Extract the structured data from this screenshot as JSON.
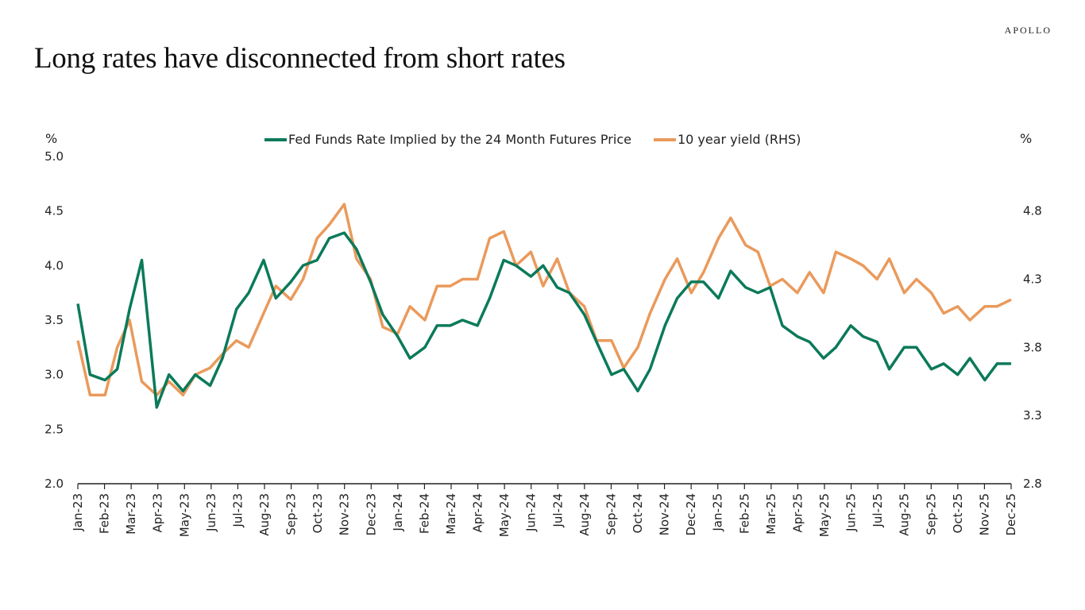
{
  "title": "Long rates have disconnected from short rates",
  "logo": "APOLLO",
  "colors": {
    "fed_funds": "#0b7a5a",
    "ten_year": "#ea9a5c",
    "axis": "#222222"
  },
  "chart_data": {
    "type": "line",
    "title": "Long rates have disconnected from short rates",
    "left_axis": {
      "unit": "%",
      "range": [
        2.0,
        5.0
      ],
      "ticks": [
        "2.0",
        "2.5",
        "3.0",
        "3.5",
        "4.0",
        "4.5",
        "5.0"
      ]
    },
    "right_axis": {
      "unit": "%",
      "range": [
        2.8,
        5.2
      ],
      "ticks": [
        "2.8",
        "3.3",
        "3.8",
        "4.3",
        "4.8"
      ]
    },
    "x_tick_labels": [
      "Jan-23",
      "Feb-23",
      "Mar-23",
      "Apr-23",
      "May-23",
      "Jun-23",
      "Jul-23",
      "Aug-23",
      "Sep-23",
      "Oct-23",
      "Nov-23",
      "Dec-23",
      "Jan-24",
      "Feb-24",
      "Mar-24",
      "Apr-24",
      "May-24",
      "Jun-24",
      "Jul-24",
      "Aug-24",
      "Sep-24",
      "Oct-24",
      "Nov-24",
      "Dec-24",
      "Jan-25",
      "Feb-25",
      "Mar-25",
      "Apr-25",
      "May-25",
      "Jun-25",
      "Jul-25",
      "Aug-25",
      "Sep-25",
      "Oct-25",
      "Nov-25",
      "Dec-25"
    ],
    "grid": false,
    "legend_placement": "top",
    "x": [
      "2023-01-01",
      "2023-01-15",
      "2023-02-01",
      "2023-02-15",
      "2023-03-01",
      "2023-03-15",
      "2023-04-01",
      "2023-04-15",
      "2023-05-01",
      "2023-05-15",
      "2023-06-01",
      "2023-06-15",
      "2023-07-01",
      "2023-07-15",
      "2023-08-01",
      "2023-08-15",
      "2023-09-01",
      "2023-09-15",
      "2023-10-01",
      "2023-10-15",
      "2023-11-01",
      "2023-11-15",
      "2023-12-01",
      "2023-12-15",
      "2024-01-01",
      "2024-01-15",
      "2024-02-01",
      "2024-02-15",
      "2024-03-01",
      "2024-03-15",
      "2024-04-01",
      "2024-04-15",
      "2024-05-01",
      "2024-05-15",
      "2024-06-01",
      "2024-06-15",
      "2024-07-01",
      "2024-07-15",
      "2024-08-01",
      "2024-08-15",
      "2024-09-01",
      "2024-09-15",
      "2024-10-01",
      "2024-10-15",
      "2024-11-01",
      "2024-11-15",
      "2024-12-01",
      "2024-12-15",
      "2025-01-01",
      "2025-01-15",
      "2025-02-01",
      "2025-02-15",
      "2025-03-01",
      "2025-03-15",
      "2025-04-01",
      "2025-04-15",
      "2025-05-01",
      "2025-05-15",
      "2025-06-01",
      "2025-06-15",
      "2025-07-01",
      "2025-07-15",
      "2025-08-01",
      "2025-08-15",
      "2025-09-01",
      "2025-09-15",
      "2025-10-01",
      "2025-10-15",
      "2025-11-01",
      "2025-11-15",
      "2025-12-01"
    ],
    "series": [
      {
        "name": "Fed Funds Rate Implied by the 24 Month Futures Price",
        "axis": "left",
        "values": [
          3.65,
          3.0,
          2.95,
          3.05,
          3.6,
          4.05,
          2.7,
          3.0,
          2.85,
          3.0,
          2.9,
          3.15,
          3.6,
          3.75,
          4.05,
          3.7,
          3.85,
          4.0,
          4.05,
          4.25,
          4.3,
          4.15,
          3.85,
          3.55,
          3.35,
          3.15,
          3.25,
          3.45,
          3.45,
          3.5,
          3.45,
          3.7,
          4.05,
          4.0,
          3.9,
          4.0,
          3.8,
          3.75,
          3.55,
          3.3,
          3.0,
          3.05,
          2.85,
          3.05,
          3.45,
          3.7,
          3.85,
          3.85,
          3.7,
          3.95,
          3.8,
          3.75,
          3.8,
          3.45,
          3.35,
          3.3,
          3.15,
          3.25,
          3.45,
          3.35,
          3.3,
          3.05,
          3.25,
          3.25,
          3.05,
          3.1,
          3.0,
          3.15,
          2.95,
          3.1,
          3.1
        ]
      },
      {
        "name": "10 year yield (RHS)",
        "axis": "right",
        "values": [
          3.85,
          3.45,
          3.45,
          3.8,
          4.0,
          3.55,
          3.45,
          3.55,
          3.45,
          3.6,
          3.65,
          3.75,
          3.85,
          3.8,
          4.05,
          4.25,
          4.15,
          4.3,
          4.6,
          4.7,
          4.85,
          4.45,
          4.3,
          3.95,
          3.9,
          4.1,
          4.0,
          4.25,
          4.25,
          4.3,
          4.3,
          4.6,
          4.65,
          4.4,
          4.5,
          4.25,
          4.45,
          4.2,
          4.1,
          3.85,
          3.85,
          3.65,
          3.8,
          4.05,
          4.3,
          4.45,
          4.2,
          4.35,
          4.6,
          4.75,
          4.55,
          4.5,
          4.25,
          4.3,
          4.2,
          4.35,
          4.2,
          4.5,
          4.45,
          4.4,
          4.3,
          4.45,
          4.2,
          4.3,
          4.2,
          4.05,
          4.1,
          4.0,
          4.1,
          4.1,
          4.15
        ]
      }
    ]
  }
}
